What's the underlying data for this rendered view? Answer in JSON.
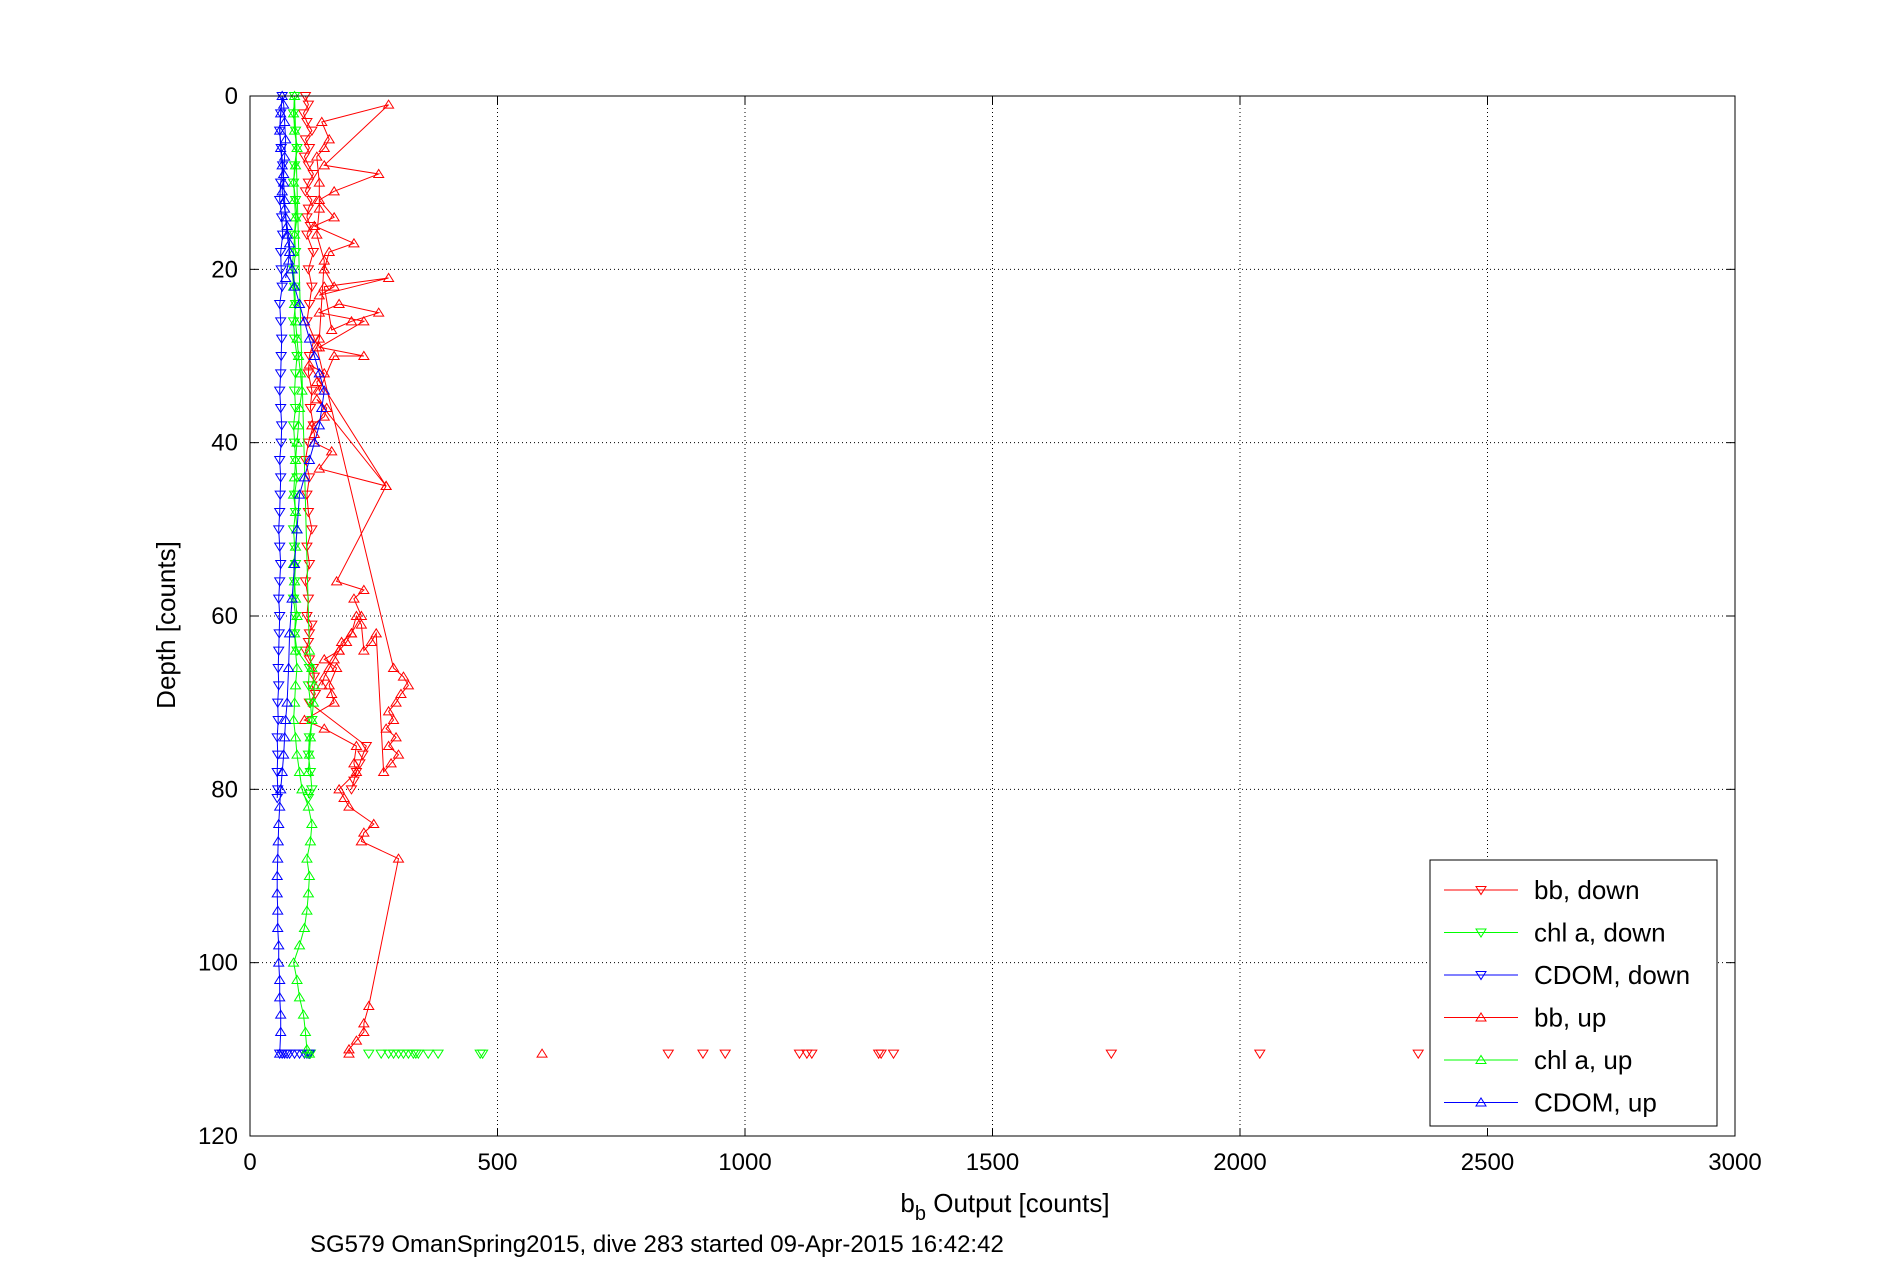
{
  "chart_data": {
    "type": "scatter",
    "title": "",
    "xlabel": "b",
    "xlabel_sub": "b",
    "xlabel_rest": " Output [counts]",
    "ylabel": "Depth [counts]",
    "caption": "SG579 OmanSpring2015, dive 283 started 09-Apr-2015 16:42:42",
    "xlim": [
      0,
      3000
    ],
    "ylim": [
      0,
      120
    ],
    "y_reversed": true,
    "grid": true,
    "legend_position": "bottom-right",
    "x_ticks": [
      "0",
      "500",
      "1000",
      "1500",
      "2000",
      "2500",
      "3000"
    ],
    "y_ticks": [
      "0",
      "20",
      "40",
      "60",
      "80",
      "100",
      "120"
    ],
    "series": [
      {
        "name": "bb, down",
        "color": "#ff0000",
        "marker": "triangle-down",
        "x": [
          112,
          118,
          108,
          115,
          125,
          112,
          120,
          110,
          118,
          128,
          118,
          112,
          125,
          118,
          115,
          122,
          115,
          128,
          118,
          125,
          120,
          115,
          130,
          120,
          118,
          125,
          122,
          128,
          118,
          112,
          120,
          115,
          118,
          125,
          115,
          120,
          112,
          118,
          115,
          125,
          120,
          118,
          112,
          120,
          128,
          130,
          125,
          132,
          120,
          235,
          228,
          222,
          215,
          210,
          205
        ],
        "y": [
          0,
          1,
          2,
          3,
          4,
          5,
          6,
          7,
          8,
          9,
          10,
          11,
          12,
          13,
          14,
          15,
          16,
          18,
          20,
          22,
          24,
          26,
          28,
          30,
          32,
          34,
          36,
          38,
          40,
          42,
          44,
          46,
          48,
          50,
          52,
          54,
          56,
          58,
          60,
          61,
          62,
          63,
          64,
          65,
          66,
          67,
          68,
          69,
          70,
          75,
          76,
          77,
          78,
          79,
          80
        ],
        "scatter_x": [
          2360,
          2040,
          1740,
          1300,
          1275,
          1270,
          1135,
          1125,
          1110,
          960,
          915,
          845
        ],
        "scatter_y": [
          110.5,
          110.5,
          110.5,
          110.5,
          110.5,
          110.5,
          110.5,
          110.5,
          110.5,
          110.5,
          110.5,
          110.5
        ]
      },
      {
        "name": "chl a, down",
        "color": "#00ff00",
        "marker": "triangle-down",
        "x": [
          90,
          88,
          92,
          95,
          90,
          88,
          92,
          95,
          90,
          92,
          88,
          90,
          92,
          88,
          90,
          95,
          92,
          90,
          92,
          88,
          90,
          92,
          95,
          90,
          92,
          88,
          90,
          92,
          90,
          88,
          92,
          90,
          95,
          120,
          118,
          122,
          125,
          120,
          118,
          122,
          125,
          120,
          118
        ],
        "y": [
          0,
          2,
          4,
          6,
          8,
          10,
          12,
          14,
          16,
          18,
          20,
          22,
          24,
          26,
          28,
          30,
          32,
          34,
          36,
          38,
          40,
          42,
          44,
          46,
          48,
          50,
          52,
          54,
          56,
          58,
          60,
          62,
          64,
          66,
          68,
          70,
          72,
          74,
          76,
          78,
          80,
          80.5,
          81
        ],
        "scatter_x": [
          470,
          465,
          380,
          360,
          340,
          335,
          330,
          320,
          310,
          300,
          290,
          280,
          265,
          240,
          120,
          118,
          122
        ],
        "scatter_y": [
          110.5,
          110.5,
          110.5,
          110.5,
          110.5,
          110.5,
          110.5,
          110.5,
          110.5,
          110.5,
          110.5,
          110.5,
          110.5,
          110.5,
          110.5,
          110.5,
          110.5
        ]
      },
      {
        "name": "CDOM, down",
        "color": "#0000ff",
        "marker": "triangle-down",
        "x": [
          65,
          62,
          60,
          63,
          66,
          62,
          60,
          64,
          66,
          62,
          63,
          65,
          60,
          62,
          64,
          63,
          62,
          60,
          62,
          64,
          63,
          60,
          62,
          61,
          60,
          58,
          60,
          62,
          60,
          58,
          60,
          59,
          58,
          57,
          58,
          56,
          57,
          55,
          56,
          55,
          56,
          55
        ],
        "y": [
          0,
          2,
          4,
          6,
          8,
          10,
          12,
          14,
          16,
          18,
          20,
          22,
          24,
          26,
          28,
          30,
          32,
          34,
          36,
          38,
          40,
          42,
          44,
          46,
          48,
          50,
          52,
          54,
          56,
          58,
          60,
          62,
          64,
          66,
          68,
          70,
          72,
          74,
          76,
          78,
          80,
          81
        ],
        "scatter_x": [
          120,
          115,
          110,
          100,
          90,
          80,
          75,
          70,
          65,
          60
        ],
        "scatter_y": [
          110.5,
          110.5,
          110.5,
          110.5,
          110.5,
          110.5,
          110.5,
          110.5,
          110.5,
          110.5
        ]
      },
      {
        "name": "bb, up",
        "color": "#ff0000",
        "marker": "triangle-up",
        "x": [
          200,
          200,
          215,
          230,
          230,
          240,
          300,
          225,
          230,
          250,
          200,
          190,
          180,
          215,
          210,
          215,
          150,
          110,
          170,
          165,
          160,
          175,
          150,
          180,
          185,
          205,
          225,
          210,
          230,
          175,
          275,
          140,
          165,
          130,
          130,
          125,
          150,
          155,
          135,
          275,
          120,
          150,
          135,
          140,
          170,
          230,
          140,
          230,
          140,
          180,
          260,
          205,
          165,
          150,
          280,
          140,
          170,
          150,
          160,
          210,
          130,
          170,
          140,
          170,
          260,
          150,
          280,
          145,
          160,
          150,
          135,
          140,
          140,
          135,
          150,
          140,
          135,
          290,
          310,
          320,
          305,
          295,
          280,
          290,
          275,
          295,
          280,
          300,
          285,
          270,
          255,
          245,
          230,
          225,
          215,
          205,
          195,
          180,
          170,
          160,
          150,
          145
        ],
        "y": [
          110.5,
          110,
          109,
          108,
          107,
          105,
          88,
          86,
          85,
          84,
          82,
          81,
          80,
          78,
          77,
          75,
          73,
          72,
          70,
          69,
          68,
          66,
          65,
          64,
          63,
          62,
          60,
          58,
          57,
          56,
          45,
          43,
          41,
          40,
          39,
          38,
          37,
          36,
          35,
          45,
          31,
          32,
          33,
          34,
          30,
          30,
          29,
          26,
          25,
          24,
          25,
          26,
          27,
          22,
          21,
          23,
          22,
          20,
          18,
          17,
          15,
          14,
          12,
          11,
          9,
          8,
          1,
          3,
          5,
          6,
          7,
          10,
          13,
          16,
          19,
          28,
          29,
          66,
          67,
          68,
          69,
          70,
          71,
          72,
          73,
          74,
          75,
          76,
          77,
          78,
          62,
          63,
          64,
          61,
          60,
          62,
          63,
          64,
          65,
          66,
          67,
          68
        ],
        "scatter_x": [
          590
        ],
        "scatter_y": [
          110.5
        ]
      },
      {
        "name": "chl a, up",
        "color": "#00ff00",
        "marker": "triangle-up",
        "x": [
          120,
          115,
          112,
          108,
          100,
          95,
          88,
          100,
          110,
          115,
          118,
          120,
          115,
          122,
          125,
          118,
          105,
          100,
          95,
          92,
          88,
          90,
          92,
          95,
          92,
          90,
          95,
          92,
          90,
          88,
          92,
          95,
          92,
          88,
          90,
          92,
          95,
          98,
          100,
          105,
          102,
          98,
          95,
          92,
          90,
          88,
          85,
          88,
          90,
          92,
          90,
          88,
          92,
          95,
          90,
          88,
          90,
          120,
          125,
          130,
          128,
          125,
          122,
          120,
          118
        ],
        "y": [
          110.5,
          110,
          108,
          106,
          104,
          102,
          100,
          98,
          96,
          94,
          92,
          90,
          88,
          86,
          84,
          82,
          80,
          78,
          76,
          74,
          72,
          70,
          68,
          66,
          64,
          62,
          60,
          58,
          56,
          54,
          52,
          50,
          48,
          46,
          44,
          42,
          40,
          38,
          36,
          34,
          32,
          30,
          28,
          26,
          24,
          22,
          20,
          18,
          16,
          14,
          12,
          10,
          8,
          6,
          4,
          2,
          0,
          64,
          66,
          68,
          70,
          72,
          74,
          76,
          78
        ]
      },
      {
        "name": "CDOM, up",
        "color": "#0000ff",
        "marker": "triangle-up",
        "x": [
          60,
          62,
          62,
          60,
          60,
          58,
          58,
          56,
          56,
          55,
          55,
          56,
          57,
          58,
          60,
          62,
          65,
          68,
          70,
          72,
          75,
          78,
          80,
          85,
          90,
          95,
          100,
          110,
          120,
          130,
          140,
          145,
          150,
          140,
          130,
          120,
          110,
          100,
          90,
          85,
          80,
          75,
          72,
          70,
          68,
          65,
          62,
          60,
          62,
          65,
          68,
          70,
          72,
          70,
          68,
          65,
          70,
          75,
          80,
          78,
          72
        ],
        "y": [
          110.5,
          108,
          106,
          104,
          102,
          100,
          98,
          96,
          94,
          92,
          90,
          88,
          86,
          84,
          82,
          80,
          78,
          76,
          74,
          72,
          70,
          66,
          62,
          58,
          54,
          50,
          46,
          44,
          42,
          40,
          38,
          36,
          34,
          32,
          30,
          28,
          26,
          24,
          22,
          20,
          18,
          16,
          14,
          12,
          10,
          8,
          6,
          4,
          2,
          0,
          1,
          3,
          5,
          7,
          9,
          11,
          13,
          15,
          17,
          19,
          21
        ]
      }
    ]
  }
}
